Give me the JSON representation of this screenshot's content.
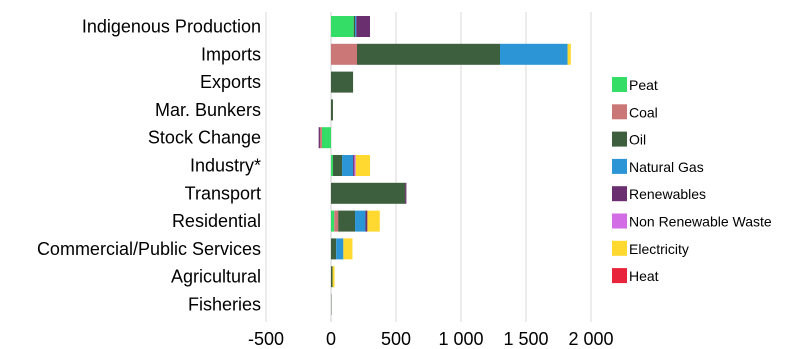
{
  "chart_data": {
    "type": "bar",
    "orientation": "horizontal",
    "stacked": true,
    "categories": [
      "Indigenous Production",
      "Imports",
      "Exports",
      "Mar. Bunkers",
      "Stock Change",
      "Industry*",
      "Transport",
      "Residential",
      "Commercial/Public Services",
      "Agricultural",
      "Fisheries"
    ],
    "series": [
      {
        "name": "Peat",
        "color": "#33dd66",
        "values": [
          175,
          0,
          0,
          0,
          -70,
          15,
          0,
          25,
          0,
          0,
          0
        ]
      },
      {
        "name": "Coal",
        "color": "#cc7777",
        "values": [
          0,
          200,
          0,
          0,
          -15,
          0,
          0,
          30,
          0,
          0,
          0
        ]
      },
      {
        "name": "Oil",
        "color": "#3e5f3e",
        "values": [
          10,
          1100,
          170,
          15,
          0,
          70,
          570,
          130,
          40,
          12,
          3
        ]
      },
      {
        "name": "Natural Gas",
        "color": "#2b95d5",
        "values": [
          10,
          520,
          0,
          0,
          0,
          85,
          0,
          80,
          55,
          0,
          0
        ]
      },
      {
        "name": "Renewables",
        "color": "#6a2f6e",
        "values": [
          105,
          0,
          0,
          0,
          -10,
          10,
          10,
          15,
          0,
          0,
          0
        ]
      },
      {
        "name": "Non Renewable Waste",
        "color": "#d36de6",
        "values": [
          0,
          0,
          0,
          0,
          0,
          10,
          0,
          0,
          0,
          0,
          0
        ]
      },
      {
        "name": "Electricity",
        "color": "#ffd92f",
        "values": [
          0,
          25,
          0,
          0,
          0,
          110,
          0,
          95,
          70,
          15,
          0
        ]
      },
      {
        "name": "Heat",
        "color": "#e8243c",
        "values": [
          0,
          0,
          0,
          0,
          0,
          0,
          0,
          0,
          0,
          0,
          0
        ]
      }
    ],
    "xlim": [
      -500,
      2000
    ],
    "xticks": [
      -500,
      0,
      500,
      1000,
      1500,
      2000
    ],
    "xtick_labels": [
      "-500",
      "0",
      "500",
      "1 000",
      "1 500",
      "2 000"
    ],
    "grid": true,
    "legend_position": "right",
    "title": "",
    "xlabel": "",
    "ylabel": ""
  }
}
